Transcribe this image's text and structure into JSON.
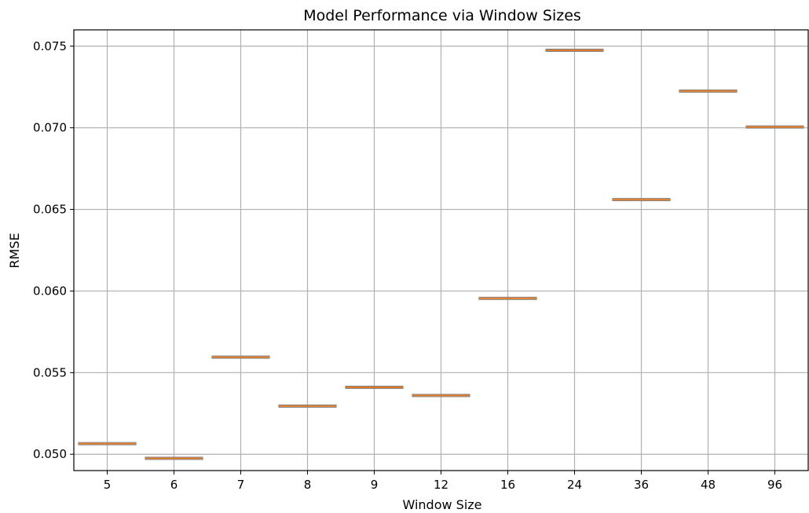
{
  "chart_data": {
    "type": "box",
    "title": "Model Performance via Window Sizes",
    "xlabel": "Window Size",
    "ylabel": "RMSE",
    "categories": [
      "5",
      "6",
      "7",
      "8",
      "9",
      "12",
      "16",
      "24",
      "36",
      "48",
      "96"
    ],
    "values": [
      0.05065,
      0.04975,
      0.05595,
      0.05295,
      0.0541,
      0.0536,
      0.05955,
      0.07475,
      0.0656,
      0.07225,
      0.07005
    ],
    "ylim": [
      0.049,
      0.076
    ],
    "yticks": [
      0.05,
      0.055,
      0.06,
      0.065,
      0.07,
      0.075
    ],
    "ytick_labels": [
      "0.050",
      "0.055",
      "0.060",
      "0.065",
      "0.070",
      "0.075"
    ],
    "grid": true,
    "colors": {
      "median": "#e07b2a",
      "box_edge": "#7f7f7f",
      "grid": "#b0b0b0",
      "axis": "#000000"
    }
  }
}
